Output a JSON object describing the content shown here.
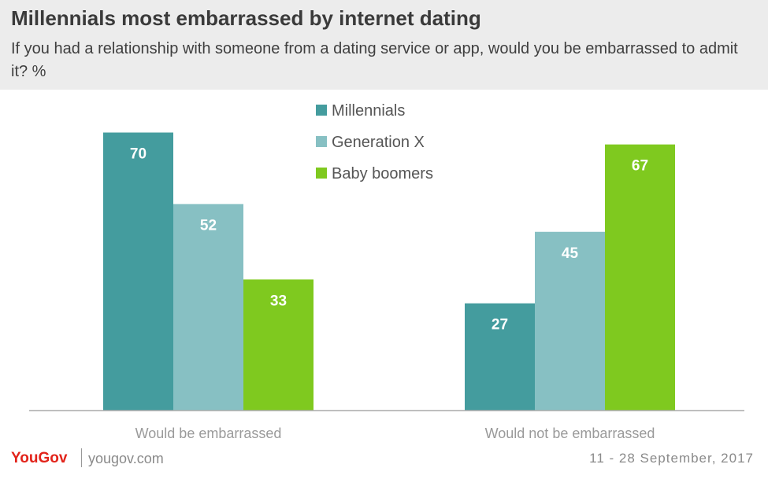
{
  "header": {
    "title": "Millennials most embarrassed by internet dating",
    "subtitle": "If you had a relationship with someone from a dating service or app, would you be embarrassed to admit it? %"
  },
  "chart_data": {
    "type": "bar",
    "categories": [
      "Would be embarrassed",
      "Would not be embarrassed"
    ],
    "series": [
      {
        "name": "Millennials",
        "values": [
          70,
          27
        ],
        "color": "#449c9e"
      },
      {
        "name": "Generation X",
        "values": [
          52,
          45
        ],
        "color": "#87c0c3"
      },
      {
        "name": "Baby boomers",
        "values": [
          33,
          67
        ],
        "color": "#7fc91f"
      }
    ],
    "ylim": [
      0,
      100
    ],
    "grid": false,
    "legend_position": "top-center"
  },
  "footer": {
    "brand": "YouGov",
    "site": "yougov.com",
    "date": "11 - 28 September, 2017"
  }
}
